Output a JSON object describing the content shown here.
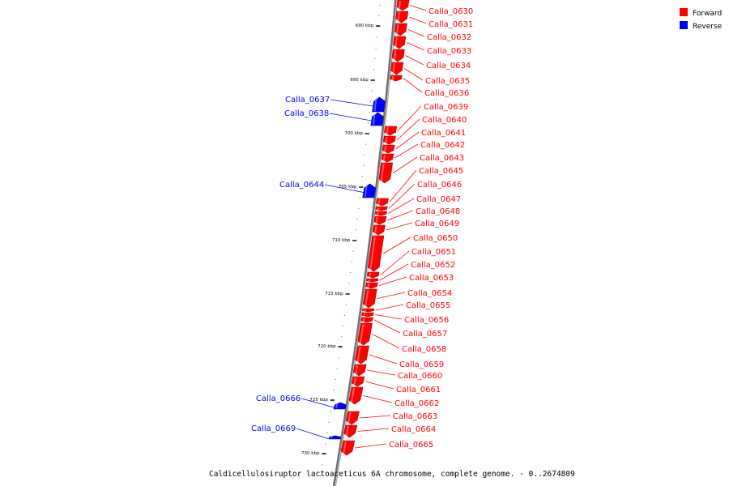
{
  "legend": {
    "forward": {
      "label": "Forward",
      "color": "#ff0000"
    },
    "reverse": {
      "label": "Reverse",
      "color": "#0000ff"
    }
  },
  "caption": "Caldicellulosiruptor lactoaceticus 6A chromosome, complete genome. - 0..2674809",
  "chart_data": {
    "type": "genome-map",
    "axis_ticks": [
      "690 kbp",
      "695 kbp",
      "700 kbp",
      "705 kbp",
      "710 kbp",
      "715 kbp",
      "720 kbp",
      "725 kbp",
      "730 kbp"
    ],
    "genes": [
      {
        "name": "Calla_0630",
        "strand": "forward"
      },
      {
        "name": "Calla_0631",
        "strand": "forward"
      },
      {
        "name": "Calla_0632",
        "strand": "forward"
      },
      {
        "name": "Calla_0633",
        "strand": "forward"
      },
      {
        "name": "Calla_0634",
        "strand": "forward"
      },
      {
        "name": "Calla_0635",
        "strand": "forward"
      },
      {
        "name": "Calla_0636",
        "strand": "forward"
      },
      {
        "name": "Calla_0637",
        "strand": "reverse"
      },
      {
        "name": "Calla_0638",
        "strand": "reverse"
      },
      {
        "name": "Calla_0639",
        "strand": "forward"
      },
      {
        "name": "Calla_0640",
        "strand": "forward"
      },
      {
        "name": "Calla_0641",
        "strand": "forward"
      },
      {
        "name": "Calla_0642",
        "strand": "forward"
      },
      {
        "name": "Calla_0643",
        "strand": "forward"
      },
      {
        "name": "Calla_0644",
        "strand": "reverse"
      },
      {
        "name": "Calla_0645",
        "strand": "forward"
      },
      {
        "name": "Calla_0646",
        "strand": "forward"
      },
      {
        "name": "Calla_0647",
        "strand": "forward"
      },
      {
        "name": "Calla_0648",
        "strand": "forward"
      },
      {
        "name": "Calla_0649",
        "strand": "forward"
      },
      {
        "name": "Calla_0650",
        "strand": "forward"
      },
      {
        "name": "Calla_0651",
        "strand": "forward"
      },
      {
        "name": "Calla_0652",
        "strand": "forward"
      },
      {
        "name": "Calla_0653",
        "strand": "forward"
      },
      {
        "name": "Calla_0654",
        "strand": "forward"
      },
      {
        "name": "Calla_0655",
        "strand": "forward"
      },
      {
        "name": "Calla_0656",
        "strand": "forward"
      },
      {
        "name": "Calla_0657",
        "strand": "forward"
      },
      {
        "name": "Calla_0658",
        "strand": "forward"
      },
      {
        "name": "Calla_0659",
        "strand": "forward"
      },
      {
        "name": "Calla_0660",
        "strand": "forward"
      },
      {
        "name": "Calla_0661",
        "strand": "forward"
      },
      {
        "name": "Calla_0662",
        "strand": "forward"
      },
      {
        "name": "Calla_0663",
        "strand": "forward"
      },
      {
        "name": "Calla_0664",
        "strand": "forward"
      },
      {
        "name": "Calla_0665",
        "strand": "forward"
      },
      {
        "name": "Calla_0666",
        "strand": "reverse"
      },
      {
        "name": "Calla_0669",
        "strand": "reverse"
      }
    ]
  }
}
